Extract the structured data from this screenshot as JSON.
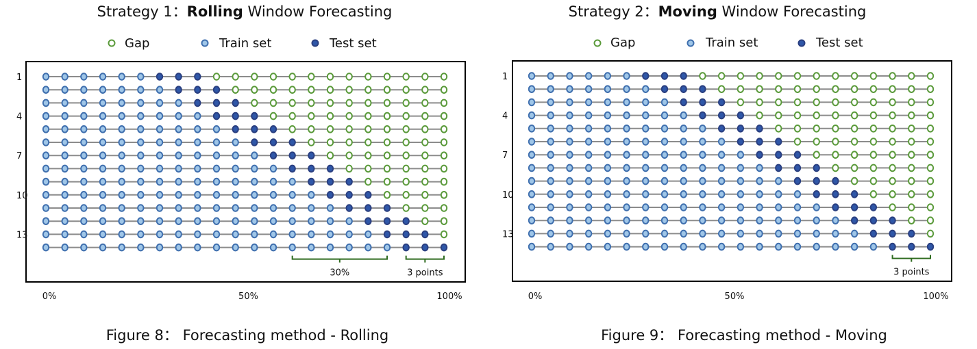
{
  "colors": {
    "gap_stroke": "#5a9a3a",
    "gap_fill": "#ffffff",
    "train_stroke": "#3f6fae",
    "train_fill": "#9fc6e8",
    "test_stroke": "#2a3f80",
    "test_fill": "#2f57a8",
    "line": "#8c8c8c",
    "frame": "#000000",
    "bracket": "#2e6b1f"
  },
  "legend": {
    "gap": "Gap",
    "train": "Train set",
    "test": "Test set"
  },
  "panels": [
    {
      "title_prefix": "Strategy 1：",
      "title_bold": "Rolling",
      "title_suffix": " Window Forecasting",
      "caption": "Figure 8： Forecasting method - Rolling",
      "strategy": "rolling",
      "annotations": [
        {
          "label": "30%",
          "from": 13,
          "to": 18
        },
        {
          "label": "3 points",
          "from": 19,
          "to": 21
        }
      ]
    },
    {
      "title_prefix": "Strategy 2：",
      "title_bold": "Moving",
      "title_suffix": " Window Forecasting",
      "caption": "Figure 9： Forecasting method - Moving",
      "strategy": "moving",
      "annotations": [
        {
          "label": "3 points",
          "from": 19,
          "to": 21
        }
      ]
    }
  ],
  "chart_data": {
    "type": "timeline-grid",
    "rows": 14,
    "points_per_row": 22,
    "test_points": 3,
    "y_ticks": [
      "1",
      "4",
      "7",
      "10",
      "13"
    ],
    "x_ticks": [
      "0%",
      "50%",
      "100%"
    ],
    "rolling_first_test_index_by_row": [
      6,
      7,
      8,
      9,
      10,
      11,
      12,
      13,
      14,
      15,
      16,
      17,
      18,
      19
    ],
    "moving_train_window": 6,
    "moving_first_test_index_by_row": [
      6,
      7,
      8,
      9,
      10,
      11,
      12,
      13,
      14,
      15,
      16,
      17,
      18,
      19
    ]
  }
}
